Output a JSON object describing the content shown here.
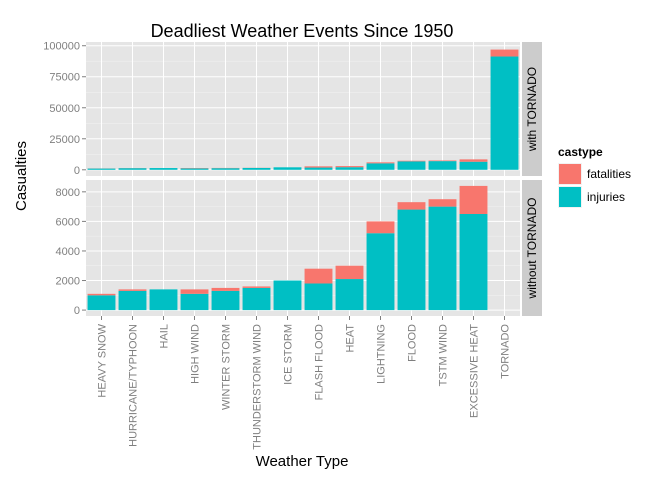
{
  "chart_data": {
    "type": "bar",
    "stacked": true,
    "title": "Deadliest Weather Events Since 1950",
    "xlabel": "Weather Type",
    "ylabel": "Casualties",
    "categories": [
      "HEAVY SNOW",
      "HURRICANE/TYPHOON",
      "HAIL",
      "HIGH WIND",
      "WINTER STORM",
      "THUNDERSTORM WIND",
      "ICE STORM",
      "FLASH FLOOD",
      "HEAT",
      "LIGHTNING",
      "FLOOD",
      "TSTM WIND",
      "EXCESSIVE HEAT",
      "TORNADO"
    ],
    "legend": {
      "title": "castype",
      "placement": "right",
      "entries": [
        "fatalities",
        "injuries"
      ]
    },
    "colors": {
      "fatalities": "#F8766D",
      "injuries": "#00BFC4",
      "panel_bg": "#E5E5E5",
      "grid": "#FFFFFF",
      "strip_bg": "#CCCCCC"
    },
    "panels": [
      {
        "strip": "with TORNADO",
        "ylim": [
          -5000,
          103000
        ],
        "yticks": [
          0,
          25000,
          50000,
          75000,
          100000
        ],
        "ytick_labels": [
          "0",
          "25000",
          "50000",
          "75000",
          "100000"
        ],
        "series": [
          {
            "name": "injuries",
            "values": [
              1000,
              1300,
              1400,
              1100,
              1300,
              1500,
              2000,
              1800,
              2100,
              5200,
              6800,
              7000,
              6500,
              91300
            ]
          },
          {
            "name": "fatalities",
            "values": [
              100,
              100,
              0,
              300,
              200,
              100,
              0,
              1000,
              900,
              800,
              500,
              500,
              1900,
              5600
            ]
          }
        ]
      },
      {
        "strip": "without TORNADO",
        "ylim": [
          -400,
          8800
        ],
        "yticks": [
          0,
          2000,
          4000,
          6000,
          8000
        ],
        "ytick_labels": [
          "0",
          "2000",
          "4000",
          "6000",
          "8000"
        ],
        "series": [
          {
            "name": "injuries",
            "values": [
              1000,
              1300,
              1400,
              1100,
              1300,
              1500,
              2000,
              1800,
              2100,
              5200,
              6800,
              7000,
              6500,
              0
            ]
          },
          {
            "name": "fatalities",
            "values": [
              100,
              100,
              0,
              300,
              200,
              100,
              0,
              1000,
              900,
              800,
              500,
              500,
              1900,
              0
            ]
          }
        ]
      }
    ],
    "grid": true
  }
}
